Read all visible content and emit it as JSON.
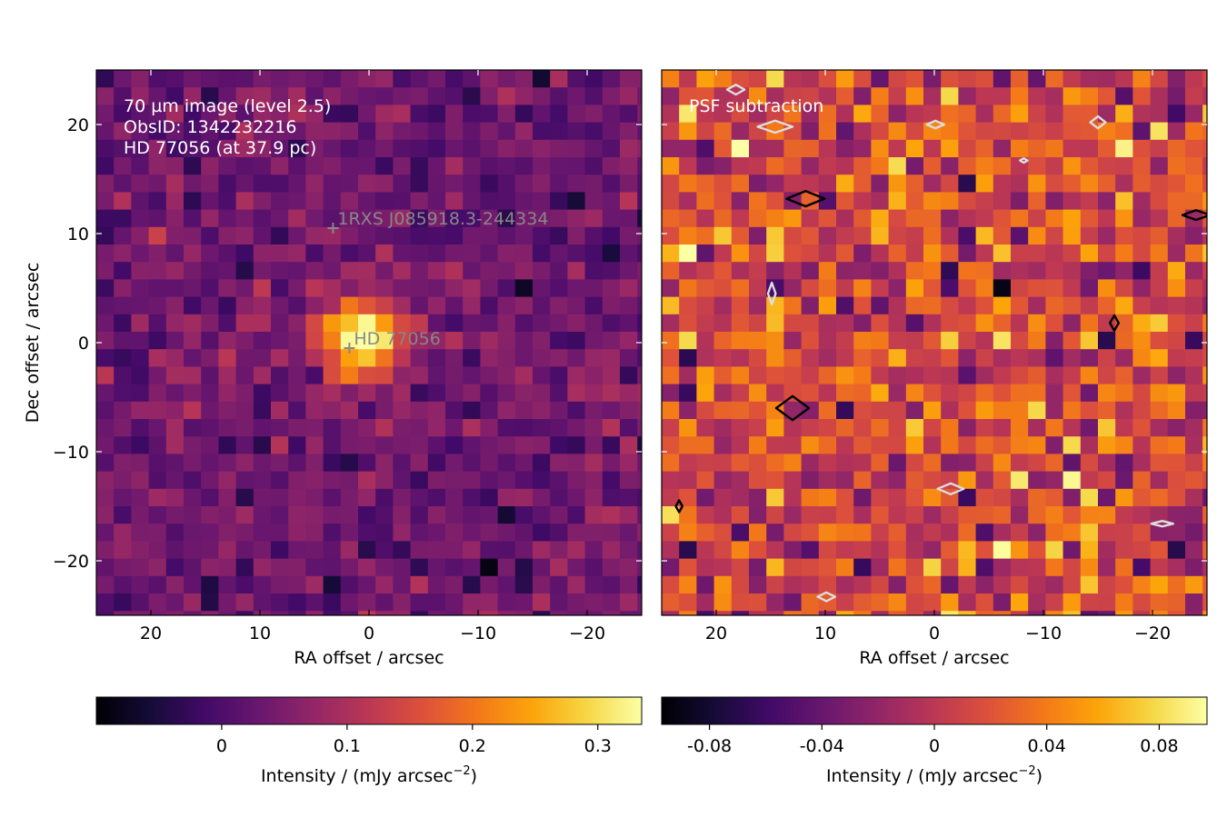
{
  "chart_data": [
    {
      "type": "heatmap",
      "panel": "left",
      "title": "",
      "annotation_lines": [
        "70 µm image (level 2.5)",
        "ObsID: 1342232216",
        "HD 77056 (at 37.9 pc)"
      ],
      "xlabel": "RA offset / arcsec",
      "ylabel": "Dec offset / arcsec",
      "xlim": [
        25,
        -25
      ],
      "ylim": [
        -25,
        25
      ],
      "xticks": [
        20,
        10,
        0,
        -10,
        -20
      ],
      "xtick_labels": [
        "20",
        "10",
        "0",
        "−10",
        "−20"
      ],
      "yticks": [
        20,
        10,
        0,
        -10,
        -20
      ],
      "ytick_labels": [
        "20",
        "10",
        "0",
        "−10",
        "−20"
      ],
      "grid": false,
      "pixel_size_arcsec": 1.6,
      "sources": [
        {
          "label": "1RXS J085918.3-244334",
          "ra": 3.3,
          "dec": 10.5
        },
        {
          "label": "HD 77056",
          "ra": 1.8,
          "dec": -0.5
        }
      ],
      "source_blob": {
        "ra": 0.5,
        "dec": 0.3,
        "peak": 0.33
      },
      "colorbar": {
        "cmap": "inferno",
        "range": [
          -0.1,
          0.335
        ],
        "ticks": [
          0,
          0.1,
          0.2,
          0.3
        ],
        "tick_labels": [
          "0",
          "0.1",
          "0.2",
          "0.3"
        ],
        "label_prefix": "Intensity / (mJy arcsec",
        "label_exp": "−2",
        "label_suffix": ")"
      }
    },
    {
      "type": "heatmap",
      "panel": "right",
      "title": "",
      "annotation_lines": [
        "PSF subtraction"
      ],
      "xlabel": "RA offset / arcsec",
      "ylabel": "",
      "xlim": [
        25,
        -25
      ],
      "ylim": [
        -25,
        25
      ],
      "xticks": [
        20,
        10,
        0,
        -10,
        -20
      ],
      "xtick_labels": [
        "20",
        "10",
        "0",
        "−10",
        "−20"
      ],
      "grid": false,
      "pixel_size_arcsec": 1.6,
      "contours": {
        "positive_color": "#000000",
        "negative_color": "#dddddd",
        "positive": [
          {
            "ra": 11.8,
            "dec": 13.2,
            "w": 3.5,
            "h": 1.4
          },
          {
            "ra": 13.0,
            "dec": -6.0,
            "w": 3.0,
            "h": 2.2
          },
          {
            "ra": -16.5,
            "dec": 1.8,
            "w": 0.8,
            "h": 1.4
          },
          {
            "ra": -24.0,
            "dec": 11.7,
            "w": 2.5,
            "h": 0.9
          },
          {
            "ra": 23.4,
            "dec": -15.0,
            "w": 0.6,
            "h": 1.1
          }
        ],
        "negative": [
          {
            "ra": 18.2,
            "dec": 23.2,
            "w": 1.6,
            "h": 0.9
          },
          {
            "ra": 14.6,
            "dec": 19.8,
            "w": 3.2,
            "h": 1.1
          },
          {
            "ra": -0.1,
            "dec": 20.0,
            "w": 1.6,
            "h": 0.7
          },
          {
            "ra": -15.0,
            "dec": 20.2,
            "w": 1.4,
            "h": 1.1
          },
          {
            "ra": -8.2,
            "dec": 16.7,
            "w": 0.7,
            "h": 0.4
          },
          {
            "ra": 14.9,
            "dec": 4.5,
            "w": 0.7,
            "h": 2.0
          },
          {
            "ra": -1.5,
            "dec": -13.4,
            "w": 2.4,
            "h": 1.0
          },
          {
            "ra": -20.9,
            "dec": -16.6,
            "w": 2.0,
            "h": 0.5
          },
          {
            "ra": 9.9,
            "dec": -23.3,
            "w": 1.6,
            "h": 0.8
          }
        ]
      },
      "colorbar": {
        "cmap": "inferno",
        "range": [
          -0.097,
          0.097
        ],
        "ticks": [
          -0.08,
          -0.04,
          0,
          0.04,
          0.08
        ],
        "tick_labels": [
          "-0.08",
          "-0.04",
          "0",
          "0.04",
          "0.08"
        ],
        "label_prefix": "Intensity / (mJy arcsec",
        "label_exp": "−2",
        "label_suffix": ")"
      }
    }
  ]
}
